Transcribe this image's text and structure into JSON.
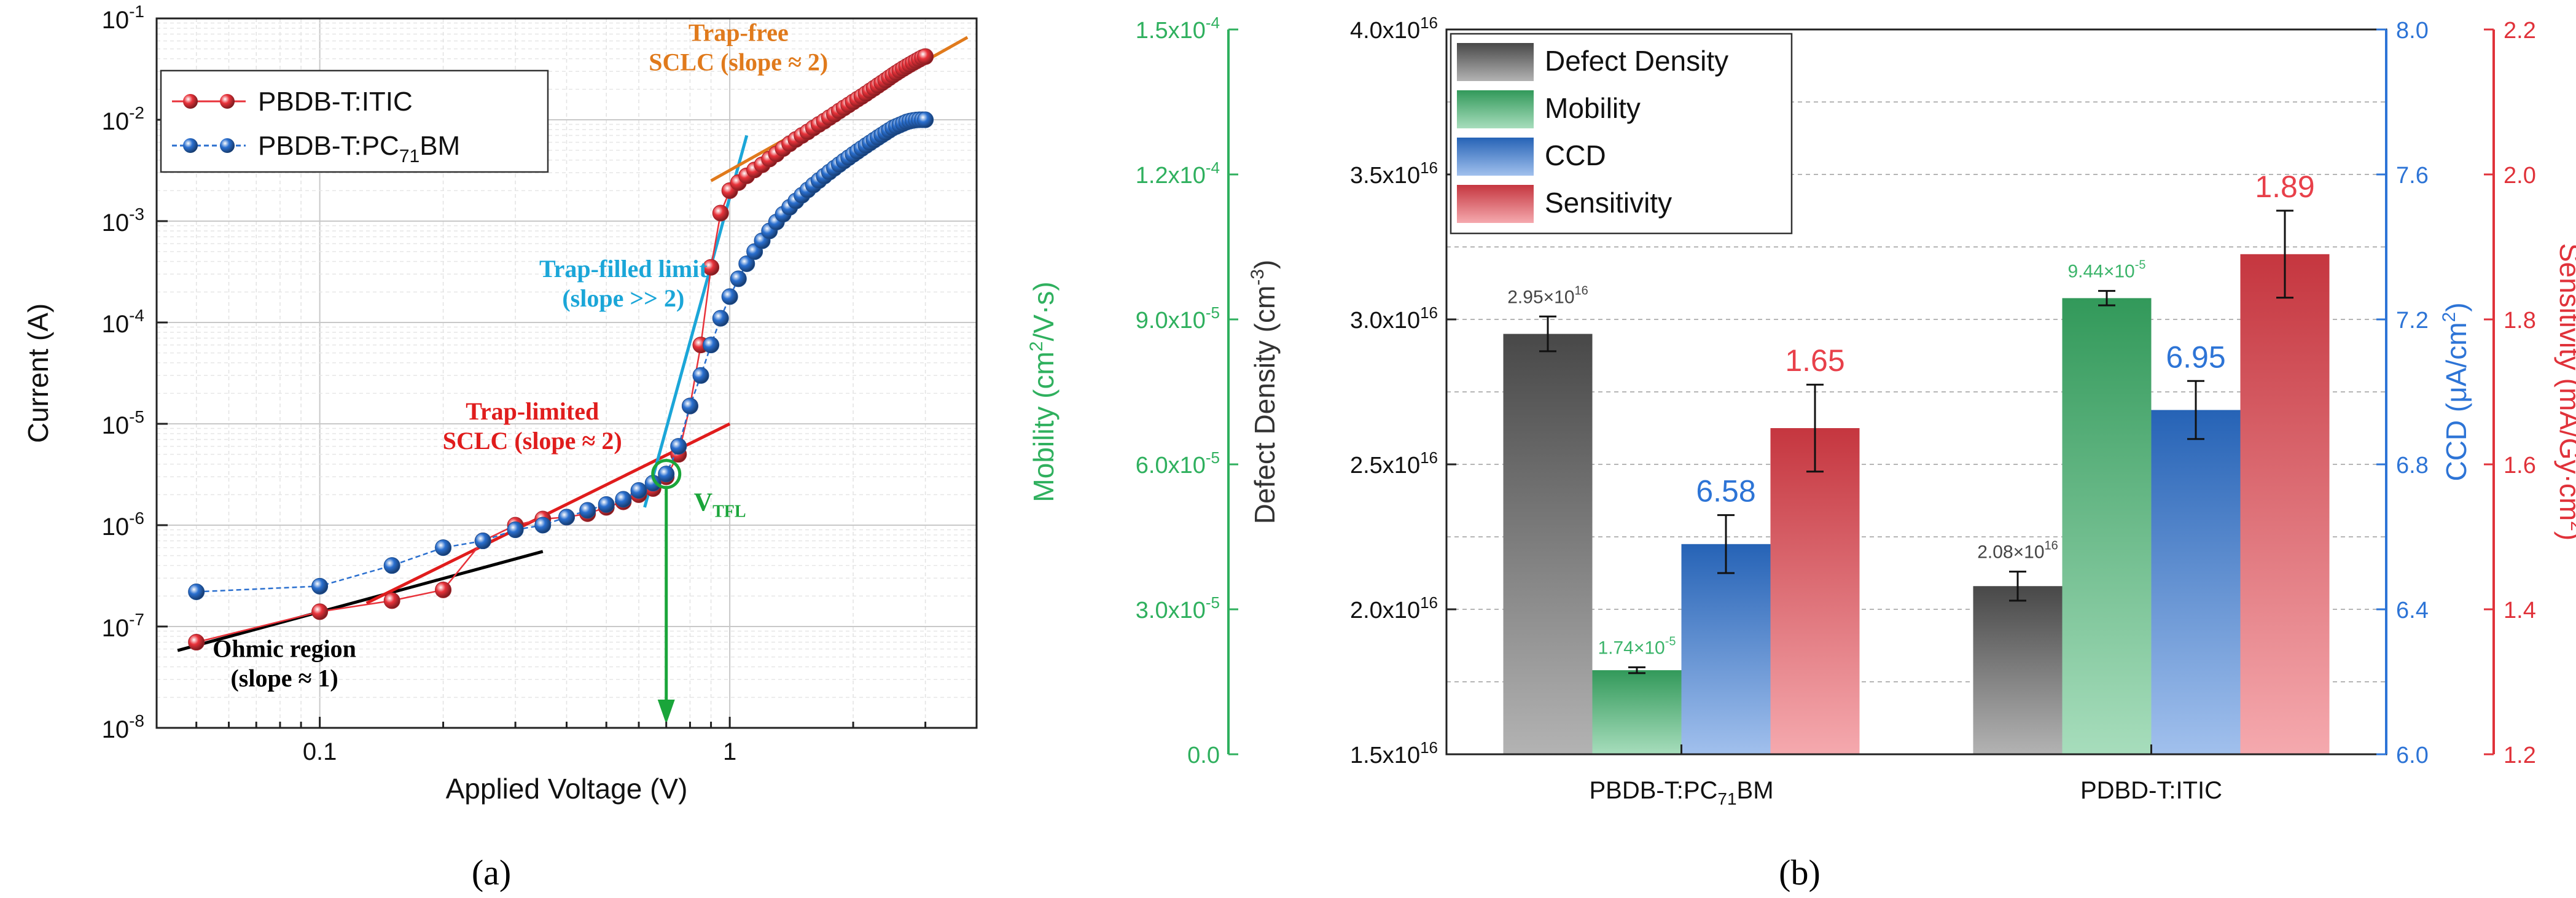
{
  "colors": {
    "itic": "#e8323a",
    "pcbm": "#2a6fcf",
    "fit_black": "#000000",
    "fit_red": "#e01c1c",
    "fit_cyan": "#1ba6d8",
    "fit_orange": "#e07a1c",
    "vtfl_green": "#1aa53a",
    "defect": "#555555",
    "mobility": "#3bb46a",
    "ccd": "#2d74d6",
    "sensitivity": "#e8404a",
    "axis_green": "#2fb05e",
    "axis_blue": "#2d74d6",
    "axis_red": "#e0323a"
  },
  "panel_labels": {
    "a": "(a)",
    "b": "(b)"
  },
  "chart_data": [
    {
      "type": "scatter",
      "scale": "log-log",
      "xlabel": "Applied Voltage (V)",
      "ylabel": "Current (A)",
      "xlim": [
        0.04,
        4
      ],
      "ylim": [
        1e-08,
        0.1
      ],
      "x_ticks": [
        {
          "v": 0.1,
          "label": "0.1"
        },
        {
          "v": 1,
          "label": "1"
        }
      ],
      "y_ticks": [
        {
          "v": 1e-08,
          "base": "10",
          "exp": "-8"
        },
        {
          "v": 1e-07,
          "base": "10",
          "exp": "-7"
        },
        {
          "v": 1e-06,
          "base": "10",
          "exp": "-6"
        },
        {
          "v": 1e-05,
          "base": "10",
          "exp": "-5"
        },
        {
          "v": 0.0001,
          "base": "10",
          "exp": "-4"
        },
        {
          "v": 0.001,
          "base": "10",
          "exp": "-3"
        },
        {
          "v": 0.01,
          "base": "10",
          "exp": "-2"
        },
        {
          "v": 0.1,
          "base": "10",
          "exp": "-1"
        }
      ],
      "grid": true,
      "legend": [
        {
          "name": "PBDB-T:ITIC",
          "color_key": "itic"
        },
        {
          "name": "PBDB-T:PC",
          "sub": "71",
          "suffix": "BM",
          "color_key": "pcbm"
        }
      ],
      "series": [
        {
          "name": "PBDB-T:ITIC",
          "color_key": "itic",
          "points": [
            [
              0.05,
              7e-08
            ],
            [
              0.1,
              1.4e-07
            ],
            [
              0.15,
              1.8e-07
            ],
            [
              0.2,
              2.3e-07
            ],
            [
              0.25,
              7e-07
            ],
            [
              0.3,
              1e-06
            ],
            [
              0.35,
              1.15e-06
            ],
            [
              0.4,
              1.2e-06
            ],
            [
              0.45,
              1.3e-06
            ],
            [
              0.5,
              1.5e-06
            ],
            [
              0.55,
              1.7e-06
            ],
            [
              0.6,
              2e-06
            ],
            [
              0.65,
              2.3e-06
            ],
            [
              0.7,
              3e-06
            ],
            [
              0.75,
              5e-06
            ],
            [
              0.8,
              1.5e-05
            ],
            [
              0.85,
              6e-05
            ],
            [
              0.9,
              0.00035
            ],
            [
              0.95,
              0.0012
            ],
            [
              1.0,
              0.002
            ],
            [
              1.05,
              0.0024
            ],
            [
              1.1,
              0.0028
            ],
            [
              1.15,
              0.0032
            ],
            [
              1.2,
              0.0036
            ],
            [
              1.25,
              0.0041
            ],
            [
              1.3,
              0.0046
            ],
            [
              1.35,
              0.0052
            ],
            [
              1.4,
              0.0058
            ],
            [
              1.45,
              0.0064
            ],
            [
              1.5,
              0.007
            ],
            [
              1.55,
              0.0076
            ],
            [
              1.6,
              0.0083
            ],
            [
              1.65,
              0.009
            ],
            [
              1.7,
              0.0097
            ],
            [
              1.75,
              0.0105
            ],
            [
              1.8,
              0.0113
            ],
            [
              1.85,
              0.0122
            ],
            [
              1.9,
              0.0131
            ],
            [
              1.95,
              0.014
            ],
            [
              2.0,
              0.015
            ],
            [
              2.05,
              0.016
            ],
            [
              2.1,
              0.017
            ],
            [
              2.15,
              0.0181
            ],
            [
              2.2,
              0.0193
            ],
            [
              2.25,
              0.0205
            ],
            [
              2.3,
              0.0218
            ],
            [
              2.35,
              0.0231
            ],
            [
              2.4,
              0.0245
            ],
            [
              2.45,
              0.026
            ],
            [
              2.5,
              0.0275
            ],
            [
              2.55,
              0.029
            ],
            [
              2.6,
              0.0305
            ],
            [
              2.65,
              0.032
            ],
            [
              2.7,
              0.0335
            ],
            [
              2.75,
              0.035
            ],
            [
              2.8,
              0.0365
            ],
            [
              2.85,
              0.038
            ],
            [
              2.9,
              0.0395
            ],
            [
              2.95,
              0.041
            ],
            [
              3.0,
              0.042
            ]
          ]
        },
        {
          "name": "PBDB-T:PC71BM",
          "color_key": "pcbm",
          "points": [
            [
              0.05,
              2.2e-07
            ],
            [
              0.1,
              2.5e-07
            ],
            [
              0.15,
              4e-07
            ],
            [
              0.2,
              6e-07
            ],
            [
              0.25,
              7e-07
            ],
            [
              0.3,
              9e-07
            ],
            [
              0.35,
              1e-06
            ],
            [
              0.4,
              1.2e-06
            ],
            [
              0.45,
              1.4e-06
            ],
            [
              0.5,
              1.6e-06
            ],
            [
              0.55,
              1.8e-06
            ],
            [
              0.6,
              2.2e-06
            ],
            [
              0.65,
              2.6e-06
            ],
            [
              0.7,
              3.2e-06
            ],
            [
              0.75,
              6e-06
            ],
            [
              0.8,
              1.5e-05
            ],
            [
              0.85,
              3e-05
            ],
            [
              0.9,
              6e-05
            ],
            [
              0.95,
              0.00011
            ],
            [
              1.0,
              0.00018
            ],
            [
              1.05,
              0.00027
            ],
            [
              1.1,
              0.00038
            ],
            [
              1.15,
              0.0005
            ],
            [
              1.2,
              0.00064
            ],
            [
              1.25,
              0.0008
            ],
            [
              1.3,
              0.00098
            ],
            [
              1.35,
              0.00117
            ],
            [
              1.4,
              0.00137
            ],
            [
              1.45,
              0.00158
            ],
            [
              1.5,
              0.0018
            ],
            [
              1.55,
              0.00203
            ],
            [
              1.6,
              0.00227
            ],
            [
              1.65,
              0.00252
            ],
            [
              1.7,
              0.00278
            ],
            [
              1.75,
              0.00305
            ],
            [
              1.8,
              0.00333
            ],
            [
              1.85,
              0.00362
            ],
            [
              1.9,
              0.00392
            ],
            [
              1.95,
              0.00423
            ],
            [
              2.0,
              0.00455
            ],
            [
              2.05,
              0.00488
            ],
            [
              2.1,
              0.00522
            ],
            [
              2.15,
              0.00557
            ],
            [
              2.2,
              0.00593
            ],
            [
              2.25,
              0.0063
            ],
            [
              2.3,
              0.00668
            ],
            [
              2.35,
              0.00707
            ],
            [
              2.4,
              0.00747
            ],
            [
              2.45,
              0.00788
            ],
            [
              2.5,
              0.0083
            ],
            [
              2.55,
              0.0086
            ],
            [
              2.6,
              0.0089
            ],
            [
              2.65,
              0.0092
            ],
            [
              2.7,
              0.0095
            ],
            [
              2.75,
              0.0097
            ],
            [
              2.8,
              0.00985
            ],
            [
              2.85,
              0.00995
            ],
            [
              2.9,
              0.01
            ],
            [
              2.95,
              0.01
            ],
            [
              3.0,
              0.01
            ]
          ]
        }
      ],
      "fit_lines": [
        {
          "name": "ohmic",
          "color_key": "fit_black",
          "from": [
            0.045,
            5.8e-08
          ],
          "to": [
            0.35,
            5.5e-07
          ]
        },
        {
          "name": "trap-limited",
          "color_key": "fit_red",
          "from": [
            0.13,
            1.7e-07
          ],
          "to": [
            1.0,
            1e-05
          ]
        },
        {
          "name": "trap-filled",
          "color_key": "fit_cyan",
          "from": [
            0.62,
            1.5e-06
          ],
          "to": [
            1.1,
            0.007
          ]
        },
        {
          "name": "trap-free",
          "color_key": "fit_orange",
          "from": [
            0.9,
            0.0025
          ],
          "to": [
            3.8,
            0.065
          ]
        }
      ],
      "annotations": [
        {
          "lines": [
            "Ohmic region",
            "(slope ≈ 1)"
          ],
          "color_key": "fit_black",
          "at": [
            0.082,
            5e-08
          ]
        },
        {
          "lines": [
            "Trap-limited",
            "SCLC (slope ≈ 2)"
          ],
          "color_key": "fit_red",
          "at": [
            0.33,
            1.1e-05
          ]
        },
        {
          "lines": [
            "Trap-filled limit",
            "(slope >> 2)"
          ],
          "color_key": "fit_cyan",
          "at": [
            0.55,
            0.00028
          ]
        },
        {
          "lines": [
            "Trap-free",
            "SCLC (slope ≈ 2)"
          ],
          "color_key": "fit_orange",
          "at": [
            1.05,
            0.06
          ]
        }
      ],
      "vtfl": {
        "label_main": "V",
        "label_sub": "TFL",
        "x": 0.7,
        "y": 3.2e-06,
        "color_key": "vtfl_green"
      }
    },
    {
      "type": "bar",
      "categories": [
        "PBDB-T:PC71BM",
        "PDBD-T:ITIC"
      ],
      "category_labels": [
        {
          "main": "PBDB-T:PC",
          "sub": "71",
          "suffix": "BM"
        },
        {
          "main": "PDBD-T:ITIC",
          "sub": "",
          "suffix": ""
        }
      ],
      "legend": [
        {
          "name": "Defect Density",
          "color_key": "defect"
        },
        {
          "name": "Mobility",
          "color_key": "mobility"
        },
        {
          "name": "CCD",
          "color_key": "ccd"
        },
        {
          "name": "Sensitivity",
          "color_key": "sensitivity"
        }
      ],
      "series": [
        {
          "name": "Defect Density",
          "axis": "defect",
          "color_key": "defect",
          "values": [
            2.95e+16,
            2.08e+16
          ],
          "errors": [
            600000000000000.0,
            500000000000000.0
          ],
          "labels": [
            "2.95×10",
            "2.08×10"
          ],
          "label_exp": "16"
        },
        {
          "name": "Mobility",
          "axis": "mobility",
          "color_key": "mobility",
          "values": [
            1.74e-05,
            9.44e-05
          ],
          "errors": [
            6e-07,
            1.5e-06
          ],
          "labels": [
            "1.74×10",
            "9.44×10"
          ],
          "label_exp": "-5"
        },
        {
          "name": "CCD",
          "axis": "ccd",
          "color_key": "ccd",
          "values": [
            6.58,
            6.95
          ],
          "errors": [
            0.08,
            0.08
          ],
          "labels": [
            "6.58",
            "6.95"
          ],
          "label_exp": ""
        },
        {
          "name": "Sensitivity",
          "axis": "sensitivity",
          "color_key": "sensitivity",
          "values": [
            1.65,
            1.89
          ],
          "errors": [
            0.06,
            0.06
          ],
          "labels": [
            "1.65",
            "1.89"
          ],
          "label_exp": ""
        }
      ],
      "axes": {
        "defect": {
          "label": "Defect Density (cm",
          "label_sup": "-3",
          "label_end": ")",
          "range": [
            1.5e+16,
            4e+16
          ],
          "ticks": [
            {
              "v": 1.5e+16,
              "t": "1.5x10"
            },
            {
              "v": 2e+16,
              "t": "2.0x10"
            },
            {
              "v": 2.5e+16,
              "t": "2.5x10"
            },
            {
              "v": 3e+16,
              "t": "3.0x10"
            },
            {
              "v": 3.5e+16,
              "t": "3.5x10"
            },
            {
              "v": 4e+16,
              "t": "4.0x10"
            }
          ],
          "tick_exp": "16"
        },
        "mobility": {
          "label": "Mobility (cm",
          "label_sup": "2",
          "label_end": "/V·s)",
          "range": [
            0,
            0.00015
          ],
          "ticks": [
            {
              "v": 0,
              "t": "0.0",
              "exp": ""
            },
            {
              "v": 3e-05,
              "t": "3.0x10",
              "exp": "-5"
            },
            {
              "v": 6e-05,
              "t": "6.0x10",
              "exp": "-5"
            },
            {
              "v": 9e-05,
              "t": "9.0x10",
              "exp": "-5"
            },
            {
              "v": 0.00012,
              "t": "1.2x10",
              "exp": "-4"
            },
            {
              "v": 0.00015,
              "t": "1.5x10",
              "exp": "-4"
            }
          ]
        },
        "ccd": {
          "label": "CCD (μA/cm",
          "label_sup": "2",
          "label_end": ")",
          "range": [
            6.0,
            8.0
          ],
          "ticks": [
            {
              "v": 6.0,
              "t": "6.0"
            },
            {
              "v": 6.4,
              "t": "6.4"
            },
            {
              "v": 6.8,
              "t": "6.8"
            },
            {
              "v": 7.2,
              "t": "7.2"
            },
            {
              "v": 7.6,
              "t": "7.6"
            },
            {
              "v": 8.0,
              "t": "8.0"
            }
          ]
        },
        "sensitivity": {
          "label": "Sensitivity (mA/Gy·cm",
          "label_sup": "2",
          "label_end": ")",
          "range": [
            1.2,
            2.2
          ],
          "ticks": [
            {
              "v": 1.2,
              "t": "1.2"
            },
            {
              "v": 1.4,
              "t": "1.4"
            },
            {
              "v": 1.6,
              "t": "1.6"
            },
            {
              "v": 1.8,
              "t": "1.8"
            },
            {
              "v": 2.0,
              "t": "2.0"
            },
            {
              "v": 2.2,
              "t": "2.2"
            }
          ]
        }
      }
    }
  ]
}
